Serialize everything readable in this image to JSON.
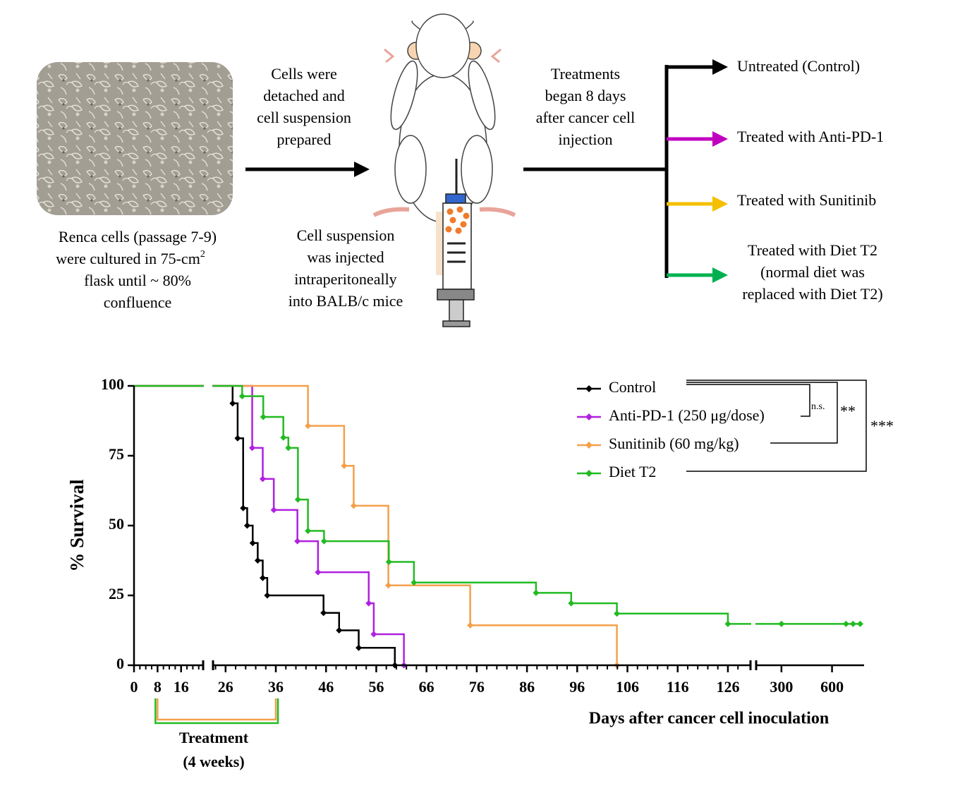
{
  "diagram": {
    "culture_caption": [
      "Renca cells (passage 7-9)",
      "were cultured in 75-cm",
      "flask until ~ 80%",
      "confluence"
    ],
    "culture_caption_sup": "2",
    "step1": [
      "Cells were",
      "detached and",
      "cell suspension",
      "prepared"
    ],
    "step2": [
      "Cell suspension",
      "was injected",
      "intraperitoneally",
      "into BALB/c mice"
    ],
    "step3": [
      "Treatments",
      "began 8 days",
      "after cancer cell",
      "injection"
    ],
    "branches": [
      {
        "label": [
          "Untreated (Control)"
        ],
        "color": "#000000"
      },
      {
        "label": [
          "Treated with Anti-PD-1"
        ],
        "color": "#c000c0"
      },
      {
        "label": [
          "Treated with Sunitinib"
        ],
        "color": "#f5c000"
      },
      {
        "label": [
          "Treated with Diet T2",
          "(normal diet was",
          "replaced with Diet T2)"
        ],
        "color": "#00b050"
      }
    ]
  },
  "chart_data": {
    "type": "line",
    "step": true,
    "ylabel": "% Survival",
    "xlabel": "Days after cancer cell inoculation",
    "ylim": [
      0,
      100
    ],
    "yticks": [
      0,
      25,
      50,
      75,
      100
    ],
    "xsegments": [
      [
        0,
        23.5
      ],
      [
        23.5,
        130.5
      ],
      [
        150,
        790
      ]
    ],
    "xticks": [
      0,
      8,
      16,
      26,
      36,
      46,
      56,
      66,
      76,
      86,
      96,
      106,
      116,
      126,
      300,
      600
    ],
    "xminor_step": 2,
    "series": [
      {
        "name": "Control",
        "color": "#000000",
        "x": [
          0,
          27.4,
          28.4,
          29.5,
          30.3,
          31.4,
          32.4,
          33.4,
          34.3,
          45.5,
          48.6,
          52.5,
          59.7
        ],
        "values": [
          100,
          93.75,
          81.25,
          56.25,
          50,
          43.75,
          37.5,
          31.25,
          25,
          18.75,
          12.5,
          6.25,
          0
        ]
      },
      {
        "name": "Anti-PD-1 (250 μg/dose)",
        "color": "#b020e0",
        "x": [
          0,
          31.3,
          33.4,
          35.6,
          40.3,
          44.4,
          54.5,
          55.5,
          61.5
        ],
        "values": [
          100,
          77.8,
          66.7,
          55.6,
          44.4,
          33.3,
          22.2,
          11.1,
          0
        ]
      },
      {
        "name": "Sunitinib (60 mg/kg)",
        "color": "#f5a04a",
        "x": [
          0,
          42.4,
          49.6,
          51.5,
          58.4,
          74.7,
          103.9
        ],
        "values": [
          100,
          85.7,
          71.4,
          57.1,
          28.6,
          14.3,
          0
        ]
      },
      {
        "name": "Diet T2",
        "color": "#22bb22",
        "x": [
          0,
          29.3,
          33.5,
          37.5,
          38.5,
          40.4,
          42.4,
          45.6,
          58.5,
          63.5,
          87.8,
          94.8,
          103.9,
          126,
          300,
          683,
          725,
          767
        ],
        "values": [
          100,
          96.3,
          88.9,
          81.5,
          77.8,
          59.3,
          48.1,
          44.4,
          37,
          29.6,
          25.9,
          22.2,
          18.5,
          14.8,
          14.8,
          14.8,
          14.8,
          14.8
        ]
      }
    ],
    "annotations": [
      "n.s.",
      "**",
      "***"
    ],
    "treatment": {
      "label": [
        "Treatment",
        "(4 weeks)"
      ],
      "span": [
        8,
        36
      ],
      "colors": [
        "#f5a04a",
        "#22bb22"
      ]
    }
  }
}
